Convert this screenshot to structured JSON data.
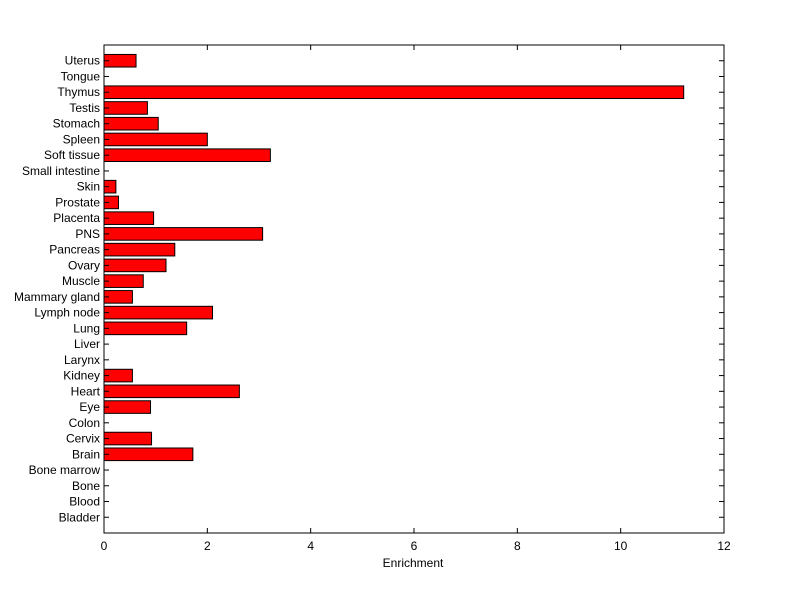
{
  "chart_data": {
    "type": "bar",
    "orientation": "horizontal",
    "categories": [
      "Uterus",
      "Tongue",
      "Thymus",
      "Testis",
      "Stomach",
      "Spleen",
      "Soft tissue",
      "Small intestine",
      "Skin",
      "Prostate",
      "Placenta",
      "PNS",
      "Pancreas",
      "Ovary",
      "Muscle",
      "Mammary gland",
      "Lymph node",
      "Lung",
      "Liver",
      "Larynx",
      "Kidney",
      "Heart",
      "Eye",
      "Colon",
      "Cervix",
      "Brain",
      "Bone marrow",
      "Bone",
      "Blood",
      "Bladder"
    ],
    "values": [
      0.62,
      0,
      11.22,
      0.84,
      1.05,
      2.0,
      3.22,
      0,
      0.23,
      0.28,
      0.96,
      3.07,
      1.37,
      1.2,
      0.76,
      0.55,
      2.1,
      1.6,
      0,
      0,
      0.55,
      2.62,
      0.9,
      0,
      0.92,
      1.72,
      0,
      0,
      0,
      0
    ],
    "title": "",
    "xlabel": "Enrichment",
    "ylabel": "",
    "xlim": [
      0,
      12
    ],
    "xticks": [
      0,
      2,
      4,
      6,
      8,
      10,
      12
    ],
    "grid": false,
    "bar_color": "#ff0000",
    "bar_edge_color": "#000000"
  }
}
